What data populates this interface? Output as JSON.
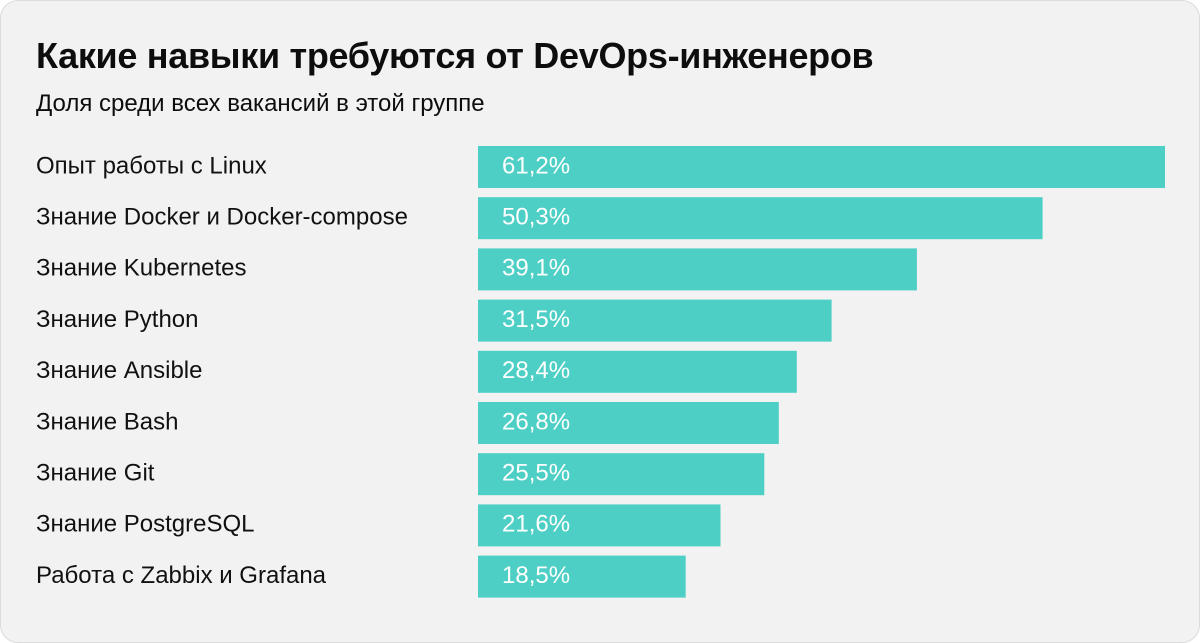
{
  "header": {
    "title": "Какие навыки требуются от DevOps-инженеров",
    "subtitle": "Доля среди всех вакансий в этой группе"
  },
  "colors": {
    "bar": "#4ecfc5",
    "background": "#f2f2f2",
    "value_text": "#ffffff"
  },
  "chart_data": {
    "type": "bar",
    "orientation": "horizontal",
    "title": "Какие навыки требуются от DevOps-инженеров",
    "subtitle": "Доля среди всех вакансий в этой группе",
    "categories": [
      "Опыт работы с Linux",
      "Знание Docker и Docker-compose",
      "Знание Kubernetes",
      "Знание Python",
      "Знание Ansible",
      "Знание Bash",
      "Знание Git",
      "Знание PostgreSQL",
      "Работа с Zabbix и Grafana"
    ],
    "values": [
      61.2,
      50.3,
      39.1,
      31.5,
      28.4,
      26.8,
      25.5,
      21.6,
      18.5
    ],
    "value_labels": [
      "61,2%",
      "50,3%",
      "39,1%",
      "31,5%",
      "28,4%",
      "26,8%",
      "25,5%",
      "21,6%",
      "18,5%"
    ],
    "unit": "%",
    "grid": false,
    "legend": "none"
  }
}
